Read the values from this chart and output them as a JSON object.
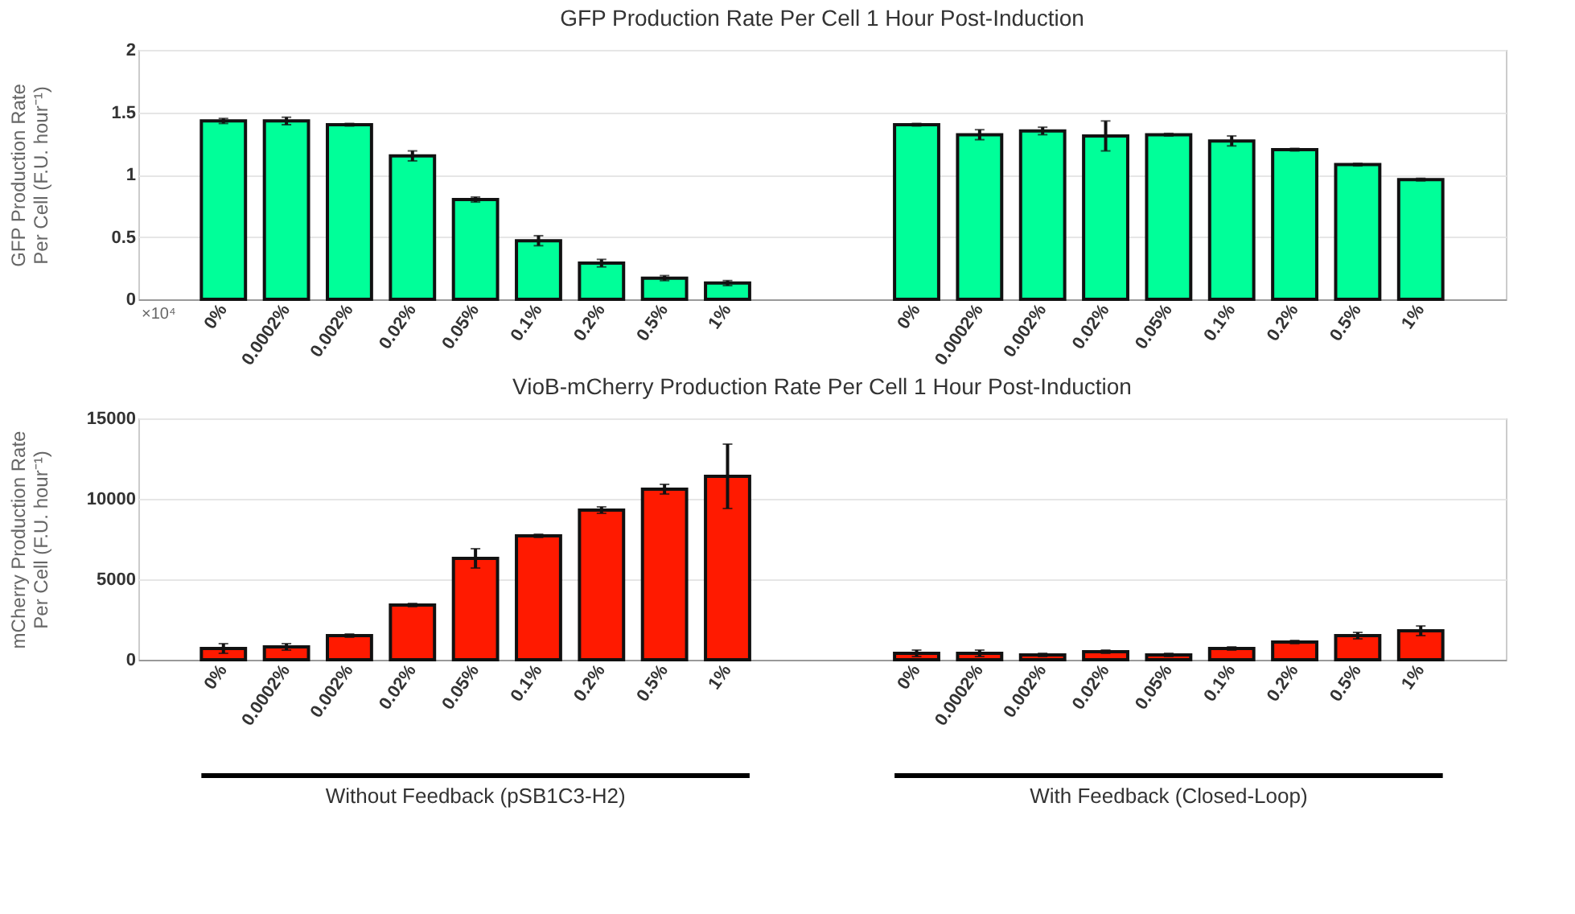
{
  "chart_data": [
    {
      "type": "bar",
      "title": "GFP Production Rate Per Cell 1 Hour Post-Induction",
      "ylabel": "GFP Production Rate\nPer Cell (F.U. hour⁻¹)",
      "categories": [
        null,
        "0%",
        "0.0002%",
        "0.002%",
        "0.02%",
        "0.05%",
        "0.1%",
        "0.2%",
        "0.5%",
        "1%",
        null,
        null,
        "0%",
        "0.0002%",
        "0.002%",
        "0.02%",
        "0.05%",
        "0.1%",
        "0.2%",
        "0.5%",
        "1%",
        null
      ],
      "values": [
        null,
        1.43,
        1.43,
        1.4,
        1.15,
        0.8,
        0.47,
        0.29,
        0.17,
        0.13,
        null,
        null,
        1.4,
        1.32,
        1.35,
        1.31,
        1.32,
        1.27,
        1.2,
        1.08,
        0.96,
        null
      ],
      "errors": [
        null,
        0.02,
        0.03,
        0.01,
        0.04,
        0.02,
        0.04,
        0.03,
        0.02,
        0.02,
        null,
        null,
        0.01,
        0.04,
        0.03,
        0.12,
        0.01,
        0.04,
        0.01,
        0.01,
        0.01,
        null
      ],
      "color": "#00ff99",
      "ylim": [
        0,
        2
      ],
      "yticks": [
        0,
        0.5,
        1,
        1.5,
        2
      ],
      "grid": true,
      "annotations": [
        "×10⁴"
      ]
    },
    {
      "type": "bar",
      "title": "VioB-mCherry Production Rate Per Cell 1 Hour Post-Induction",
      "ylabel": "mCherry Production Rate\nPer Cell (F.U. hour⁻¹)",
      "categories": [
        null,
        "0%",
        "0.0002%",
        "0.002%",
        "0.02%",
        "0.05%",
        "0.1%",
        "0.2%",
        "0.5%",
        "1%",
        null,
        null,
        "0%",
        "0.0002%",
        "0.002%",
        "0.02%",
        "0.05%",
        "0.1%",
        "0.2%",
        "0.5%",
        "1%",
        null
      ],
      "values": [
        null,
        700,
        800,
        1500,
        3400,
        6300,
        7700,
        9300,
        10600,
        11400,
        null,
        null,
        400,
        400,
        300,
        500,
        300,
        700,
        1100,
        1500,
        1800,
        null
      ],
      "errors": [
        null,
        300,
        200,
        100,
        100,
        600,
        100,
        200,
        300,
        2000,
        null,
        null,
        200,
        200,
        100,
        100,
        100,
        100,
        100,
        200,
        300,
        null
      ],
      "color": "#ff1a00",
      "ylim": [
        0,
        15000
      ],
      "yticks": [
        0,
        5000,
        10000,
        15000
      ],
      "grid": true,
      "annotations": [
        "Without Feedback (pSB1C3-H2)",
        "With Feedback (Closed-Loop)"
      ]
    }
  ]
}
